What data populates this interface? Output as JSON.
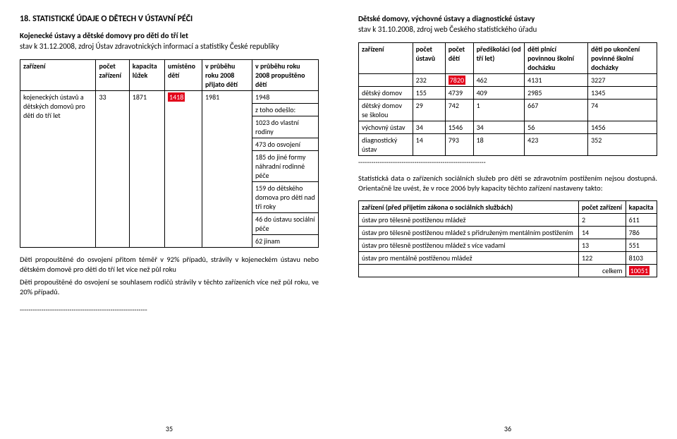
{
  "left": {
    "h1": "18. STATISTICKÉ ÚDAJE O DĚTECH V ÚSTAVNÍ PÉČI",
    "h2": "Kojenecké ústavy a dětské domovy pro děti do tří let",
    "sub": "stav k 31.12.2008, zdroj Ústav zdravotnických informací a statistiky České republiky",
    "tbl": {
      "head": [
        "zařízení",
        "počet zařízení",
        "kapacita lůžek",
        "umístěno dětí",
        "v průběhu roku 2008 přijato dětí",
        "v průběhu roku 2008 propuštěno dětí"
      ],
      "r0": [
        "kojeneckých ústavů a dětských domovů pro děti do tří let",
        "33",
        "1871",
        "1418",
        "1981",
        ""
      ],
      "r0c5_lines": [
        "1948",
        "z toho odešlo:",
        "1023 do vlastní rodiny",
        "473 do osvojení",
        "185 do jiné formy náhradní rodinné péče",
        "159 do dětského domova pro děti nad tři roky",
        "46 do ústavu sociální péče",
        "62 jinam"
      ]
    },
    "p1": "Děti propouštěné do osvojení přitom téměř v 92% případů, strávily v kojeneckém ústavu nebo dětském domově pro děti do tří let více než půl roku",
    "p2": "Děti propouštěné do osvojení se souhlasem rodičů strávily v těchto zařízeních více než půl roku, ve 20% případů.",
    "dash": "-----------------------------------------------------------",
    "pagenum": "35"
  },
  "right": {
    "h2": "Dětské domovy, výchovné ústavy a diagnostické ústavy",
    "sub": "stav k 31.10.2008, zdroj web Českého statistického úřadu",
    "tbl1": {
      "head": [
        "zařízení",
        "počet ústavů",
        "počet dětí",
        "předškoláci (od tří let)",
        "děti plnící povinnou školní docházku",
        "děti po ukončení povinné školní docházky"
      ],
      "rows": [
        [
          "",
          "232",
          "7820",
          "462",
          "4131",
          "3227"
        ],
        [
          "dětský domov",
          "155",
          "4739",
          "409",
          "2985",
          "1345"
        ],
        [
          "dětský domov se školou",
          "29",
          "742",
          "1",
          "667",
          "74"
        ],
        [
          "výchovný ústav",
          "34",
          "1546",
          "34",
          "56",
          "1456"
        ],
        [
          "diagnostický ústav",
          "14",
          "793",
          "18",
          "423",
          "352"
        ]
      ],
      "hl_row": 0,
      "hl_col": 2
    },
    "dash": "-----------------------------------------------------------",
    "p1": "Statistická data o zařízeních sociálních služeb pro děti se zdravotním postižením nejsou dostupná. Orientačně lze uvést, že v roce 2006 byly kapacity těchto zařízení nastaveny takto:",
    "tbl2": {
      "head": [
        "zařízení (před přijetím zákona o sociálních službách)",
        "počet zařízení",
        "kapacita"
      ],
      "rows": [
        [
          "ústav pro tělesně postiženou mládež",
          "2",
          "611"
        ],
        [
          "ústav pro tělesně postiženou mládež s přidruženým mentálním postižením",
          "14",
          "786"
        ],
        [
          "ústav pro tělesně postiženou mládež s více vadami",
          "13",
          "551"
        ],
        [
          "ústav pro mentálně postiženou mládež",
          "122",
          "8103"
        ]
      ],
      "total": [
        "",
        "celkem",
        "10051"
      ]
    },
    "pagenum": "36"
  }
}
